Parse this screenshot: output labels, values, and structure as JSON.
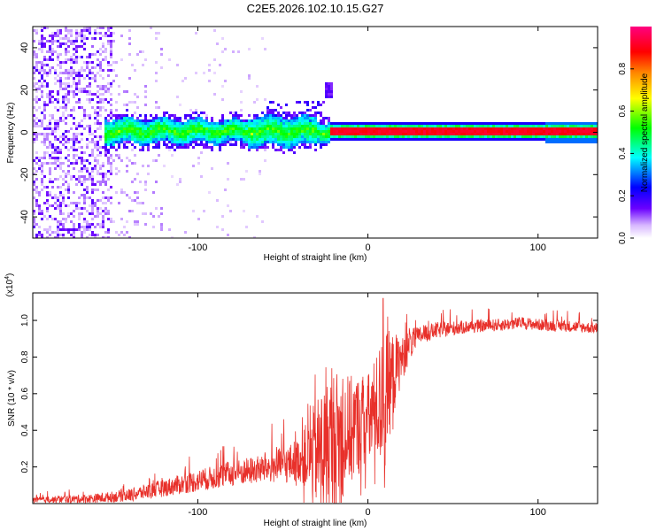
{
  "title": "C2E5.2026.102.10.15.G27",
  "chart_data": [
    {
      "type": "heatmap",
      "xlabel": "Height of straight line (km)",
      "ylabel": "Frequency (Hz)",
      "xlim": [
        -197,
        135
      ],
      "ylim": [
        -50,
        50
      ],
      "xticks": [
        -100,
        0,
        100
      ],
      "xtick_labels": [
        "-100",
        "0",
        "100"
      ],
      "yticks": [
        -40,
        -20,
        0,
        20,
        40
      ],
      "ytick_labels": [
        "-40",
        "-20",
        "0",
        "20",
        "40"
      ],
      "colorbar": {
        "label": "Normalized spectral amplitude",
        "range": [
          0,
          1
        ],
        "ticks": [
          0.0,
          0.2,
          0.4,
          0.6,
          0.8
        ],
        "tick_labels": [
          "0.0",
          "0.2",
          "0.4",
          "0.6",
          "0.8"
        ],
        "colors": [
          "#ffffff",
          "#6a00ff",
          "#0000ff",
          "#00ffff",
          "#00ff00",
          "#ffff00",
          "#ff8800",
          "#ff0000",
          "#ff0080"
        ]
      },
      "features": {
        "noise_region_x": [
          -197,
          -150
        ],
        "band_center_freq": 0,
        "band_start_x": -155,
        "narrow_line_start_x": -22,
        "narrow_line_end_x": 135,
        "blip_x": -23,
        "blip_freq": 20
      }
    },
    {
      "type": "line",
      "xlabel": "Height of straight line (km)",
      "ylabel": "SNR (10 * v/v)",
      "y_multiplier": "(x10",
      "y_multiplier_exp": "4",
      "y_multiplier_close": ")",
      "xlim": [
        -197,
        135
      ],
      "ylim": [
        0,
        1.15
      ],
      "xticks": [
        -100,
        0,
        100
      ],
      "xtick_labels": [
        "-100",
        "0",
        "100"
      ],
      "yticks": [
        0.2,
        0.4,
        0.6,
        0.8,
        1.0
      ],
      "ytick_labels": [
        "0.2",
        "0.4",
        "0.6",
        "0.8",
        "1.0"
      ],
      "line_color": "#e8302a",
      "trend": {
        "x": [
          -197,
          -160,
          -140,
          -120,
          -100,
          -80,
          -60,
          -40,
          -30,
          -20,
          -10,
          0,
          5,
          10,
          15,
          20,
          25,
          30,
          40,
          60,
          80,
          90,
          100,
          120,
          135
        ],
        "y": [
          0.02,
          0.03,
          0.05,
          0.09,
          0.13,
          0.17,
          0.2,
          0.24,
          0.28,
          0.34,
          0.4,
          0.46,
          0.52,
          0.6,
          0.7,
          0.8,
          0.88,
          0.92,
          0.95,
          0.97,
          0.98,
          0.99,
          0.98,
          0.97,
          0.96
        ]
      },
      "noise_amplitude": {
        "x": [
          -197,
          -150,
          -100,
          -60,
          -40,
          -30,
          -20,
          -10,
          0,
          10,
          20,
          30,
          60,
          135
        ],
        "y": [
          0.015,
          0.03,
          0.06,
          0.08,
          0.12,
          0.3,
          0.4,
          0.3,
          0.25,
          0.35,
          0.12,
          0.05,
          0.035,
          0.03
        ]
      },
      "peak": {
        "x": 9,
        "y": 1.12
      },
      "dip": {
        "x": 10,
        "y": 0.21
      }
    }
  ]
}
